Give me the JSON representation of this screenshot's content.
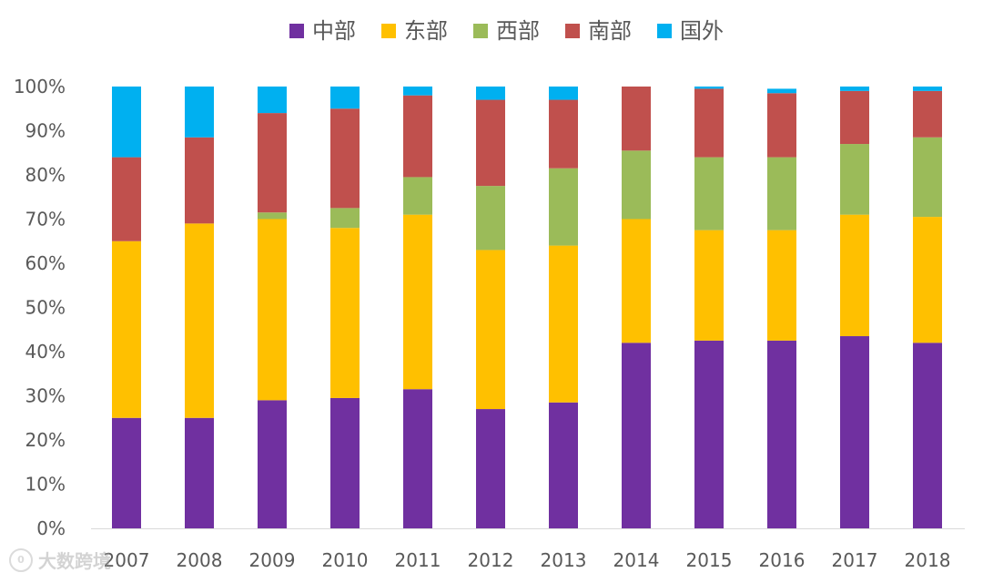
{
  "chart_data": {
    "type": "stacked-bar-100",
    "title": "",
    "xlabel": "",
    "ylabel": "",
    "ylim": [
      0,
      100
    ],
    "yticks": [
      "0%",
      "10%",
      "20%",
      "30%",
      "40%",
      "50%",
      "60%",
      "70%",
      "80%",
      "90%",
      "100%"
    ],
    "categories": [
      "2007",
      "2008",
      "2009",
      "2010",
      "2011",
      "2012",
      "2013",
      "2014",
      "2015",
      "2016",
      "2017",
      "2018"
    ],
    "legend_position": "top-center",
    "grid": false,
    "series": [
      {
        "name": "中部",
        "color": "#7030a0",
        "values": [
          25,
          25,
          29,
          29.5,
          31.5,
          27,
          28.5,
          42,
          42.5,
          42.5,
          43.5,
          42
        ]
      },
      {
        "name": "东部",
        "color": "#ffc000",
        "values": [
          40,
          44,
          41,
          38.5,
          39.5,
          36,
          35.5,
          28,
          25,
          25,
          27.5,
          28.5
        ]
      },
      {
        "name": "西部",
        "color": "#9bbb59",
        "values": [
          0,
          0,
          1.5,
          4.5,
          8.5,
          14.5,
          17.5,
          15.5,
          16.5,
          16.5,
          16,
          18
        ]
      },
      {
        "name": "南部",
        "color": "#c0504d",
        "values": [
          19,
          19.5,
          22.5,
          22.5,
          18.5,
          19.5,
          15.5,
          14.5,
          15.5,
          14.5,
          12,
          10.5
        ]
      },
      {
        "name": "国外",
        "color": "#00b0f0",
        "values": [
          16,
          11.5,
          6,
          5,
          2,
          3,
          3,
          0,
          0.5,
          1,
          1,
          1
        ]
      }
    ]
  },
  "watermark": {
    "logo_text": "0",
    "text": "大数跨境"
  }
}
